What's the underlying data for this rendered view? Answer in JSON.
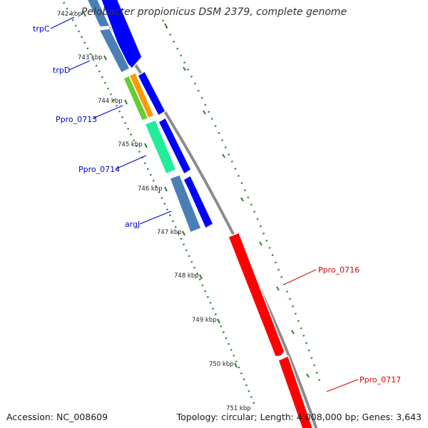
{
  "title": "Pelobacter propionicus DSM 2379, complete genome",
  "accession": "Accession: NC_008609",
  "topology": "Topology: circular; Length: 4,008,000 bp; Genes: 3,643",
  "ticks": [
    "742 kbp",
    "743 kbp",
    "744 kbp",
    "745 kbp",
    "746 kbp",
    "747 kbp",
    "748 kbp",
    "749 kbp",
    "750 kbp",
    "751 kbp"
  ],
  "gene_labels": [
    {
      "name": "trpC",
      "color": "#0000cc"
    },
    {
      "name": "trpD",
      "color": "#0000cc"
    },
    {
      "name": "Ppro_0713",
      "color": "#0000cc"
    },
    {
      "name": "Ppro_0714",
      "color": "#0000cc"
    },
    {
      "name": "argJ",
      "color": "#0000cc"
    },
    {
      "name": "Ppro_0716",
      "color": "#dd0000"
    },
    {
      "name": "Ppro_0717",
      "color": "#dd0000"
    }
  ],
  "colors": {
    "backbone": "#8c8c8c",
    "forward_strand": "#0000ff",
    "reverse_steel": "#4a7fb5",
    "reverse_strand_red": "#ff0000",
    "green_gene": "#66cc33",
    "orange_gene": "#ff9900",
    "mint_gene": "#22ee99",
    "tick_dots": "#2e7d32"
  }
}
